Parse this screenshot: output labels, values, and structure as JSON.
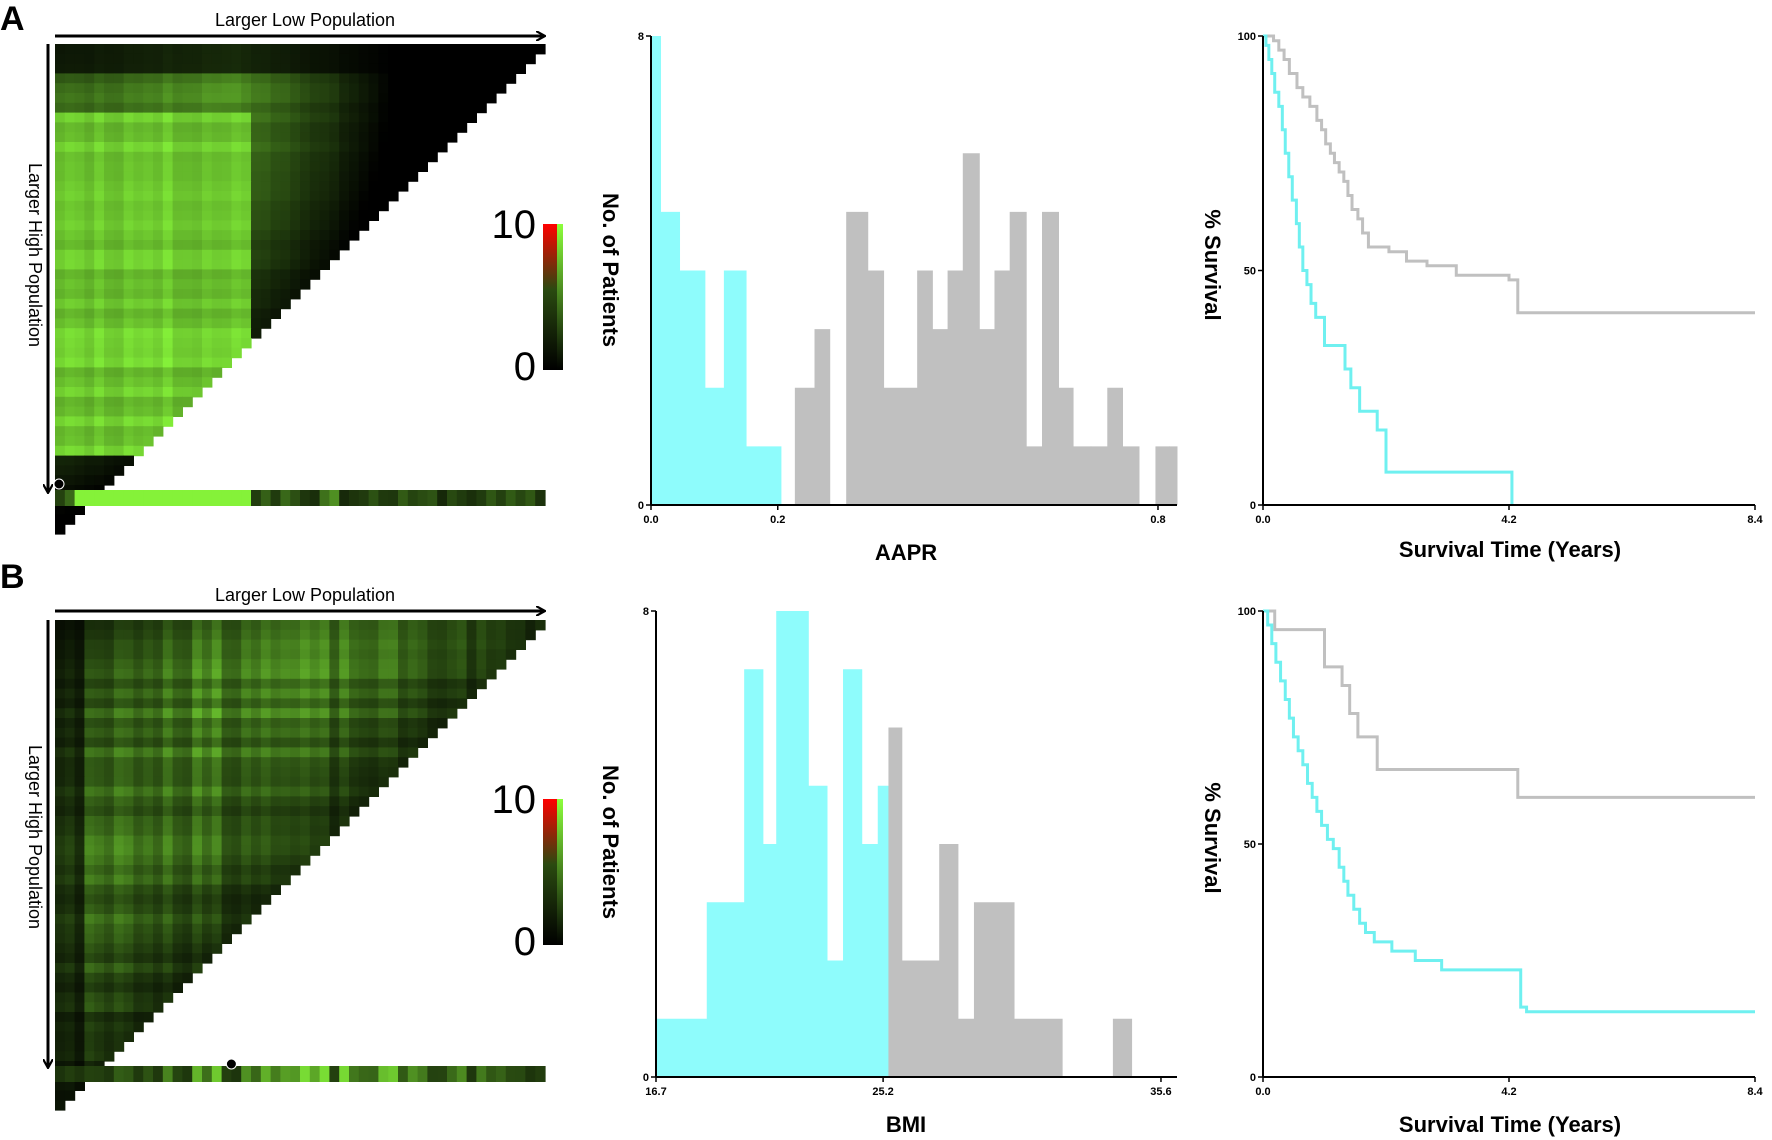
{
  "panels": [
    {
      "letter": "A",
      "heatmap": {
        "top_label": "Larger Low Population",
        "side_label": "Larger High Population",
        "colorbar": {
          "max_label": "10",
          "min_label": "0",
          "colors": [
            "#000000",
            "#8cff3c",
            "#ff0000"
          ]
        },
        "seed": 11,
        "marker_fraction": 0.0
      },
      "histogram": {
        "type": "bar",
        "ylabel": "No. of Patients",
        "xlabel": "AAPR",
        "y_ticks": [
          "8",
          "0"
        ],
        "x_ticks": [
          {
            "value": 0.0,
            "label": "0.0"
          },
          {
            "value": 0.2,
            "label": "0.2"
          },
          {
            "value": 0.8,
            "label": "0.8"
          }
        ],
        "xlim": [
          0.0,
          0.83
        ],
        "ylim": [
          0,
          8
        ],
        "low_color": "#8efcfc",
        "high_color": "#c0c0c0",
        "bins": [
          {
            "x0": 0.0,
            "x1": 0.015,
            "count": 8,
            "group": "low"
          },
          {
            "x0": 0.015,
            "x1": 0.045,
            "count": 5,
            "group": "low"
          },
          {
            "x0": 0.045,
            "x1": 0.085,
            "count": 4,
            "group": "low"
          },
          {
            "x0": 0.085,
            "x1": 0.115,
            "count": 2,
            "group": "low"
          },
          {
            "x0": 0.115,
            "x1": 0.15,
            "count": 4,
            "group": "low"
          },
          {
            "x0": 0.15,
            "x1": 0.17,
            "count": 1,
            "group": "low"
          },
          {
            "x0": 0.17,
            "x1": 0.205,
            "count": 1,
            "group": "low"
          },
          {
            "x0": 0.205,
            "x1": 0.227,
            "count": 0,
            "group": "high"
          },
          {
            "x0": 0.227,
            "x1": 0.258,
            "count": 2,
            "group": "high"
          },
          {
            "x0": 0.258,
            "x1": 0.282,
            "count": 3,
            "group": "high"
          },
          {
            "x0": 0.282,
            "x1": 0.308,
            "count": 0,
            "group": "high"
          },
          {
            "x0": 0.308,
            "x1": 0.342,
            "count": 5,
            "group": "high"
          },
          {
            "x0": 0.342,
            "x1": 0.367,
            "count": 4,
            "group": "high"
          },
          {
            "x0": 0.367,
            "x1": 0.42,
            "count": 2,
            "group": "high"
          },
          {
            "x0": 0.42,
            "x1": 0.444,
            "count": 4,
            "group": "high"
          },
          {
            "x0": 0.444,
            "x1": 0.468,
            "count": 3,
            "group": "high"
          },
          {
            "x0": 0.468,
            "x1": 0.492,
            "count": 4,
            "group": "high"
          },
          {
            "x0": 0.492,
            "x1": 0.518,
            "count": 6,
            "group": "high"
          },
          {
            "x0": 0.518,
            "x1": 0.542,
            "count": 3,
            "group": "high"
          },
          {
            "x0": 0.542,
            "x1": 0.566,
            "count": 4,
            "group": "high"
          },
          {
            "x0": 0.566,
            "x1": 0.592,
            "count": 5,
            "group": "high"
          },
          {
            "x0": 0.592,
            "x1": 0.617,
            "count": 1,
            "group": "high"
          },
          {
            "x0": 0.617,
            "x1": 0.643,
            "count": 5,
            "group": "high"
          },
          {
            "x0": 0.643,
            "x1": 0.666,
            "count": 2,
            "group": "high"
          },
          {
            "x0": 0.666,
            "x1": 0.694,
            "count": 1,
            "group": "high"
          },
          {
            "x0": 0.694,
            "x1": 0.72,
            "count": 1,
            "group": "high"
          },
          {
            "x0": 0.72,
            "x1": 0.744,
            "count": 2,
            "group": "high"
          },
          {
            "x0": 0.744,
            "x1": 0.77,
            "count": 1,
            "group": "high"
          },
          {
            "x0": 0.77,
            "x1": 0.796,
            "count": 0,
            "group": "high"
          },
          {
            "x0": 0.796,
            "x1": 0.818,
            "count": 1,
            "group": "high"
          },
          {
            "x0": 0.818,
            "x1": 0.83,
            "count": 1,
            "group": "high"
          }
        ]
      },
      "survival": {
        "type": "line",
        "ylabel": "% Survival",
        "xlabel": "Survival Time (Years)",
        "y_ticks": [
          "100",
          "50",
          "0"
        ],
        "x_ticks": [
          {
            "value": 0.0,
            "label": "0.0"
          },
          {
            "value": 4.2,
            "label": "4.2"
          },
          {
            "value": 8.4,
            "label": "8.4"
          }
        ],
        "xlim": [
          0,
          8.4
        ],
        "ylim": [
          0,
          100
        ],
        "series": [
          {
            "color": "#c0c0c0",
            "x": [
              0,
              0.18,
              0.27,
              0.36,
              0.45,
              0.58,
              0.68,
              0.8,
              0.92,
              1.0,
              1.07,
              1.15,
              1.22,
              1.3,
              1.38,
              1.45,
              1.52,
              1.62,
              1.7,
              1.8,
              2.15,
              2.45,
              2.8,
              3.3,
              4.2,
              4.35,
              8.4
            ],
            "y": [
              100,
              99,
              97,
              95,
              92,
              89,
              87,
              85,
              82,
              80,
              77,
              75,
              73,
              71,
              69,
              66,
              63,
              61,
              58,
              55,
              54,
              52,
              51,
              49,
              48,
              41,
              41
            ]
          },
          {
            "color": "#6ff0f0",
            "x": [
              0,
              0.05,
              0.1,
              0.15,
              0.2,
              0.27,
              0.33,
              0.38,
              0.44,
              0.5,
              0.57,
              0.62,
              0.68,
              0.75,
              0.82,
              0.9,
              1.05,
              1.4,
              1.5,
              1.65,
              1.95,
              2.1,
              4.25
            ],
            "y": [
              100,
              98,
              95,
              92,
              88,
              85,
              80,
              75,
              70,
              65,
              60,
              55,
              50,
              47,
              43,
              40,
              34,
              29,
              25,
              20,
              16,
              7,
              0
            ]
          }
        ]
      }
    },
    {
      "letter": "B",
      "heatmap": {
        "top_label": "Larger Low Population",
        "side_label": "Larger High Population",
        "colorbar": {
          "max_label": "10",
          "min_label": "0",
          "colors": [
            "#000000",
            "#8cff3c",
            "#ff0000"
          ]
        },
        "seed": 23,
        "marker_fraction": 0.36
      },
      "histogram": {
        "type": "bar",
        "ylabel": "No. of Patients",
        "xlabel": "BMI",
        "y_ticks": [
          "8",
          "0"
        ],
        "x_ticks": [
          {
            "value": 16.7,
            "label": "16.7"
          },
          {
            "value": 25.2,
            "label": "25.2"
          },
          {
            "value": 35.6,
            "label": "35.6"
          }
        ],
        "xlim": [
          16.7,
          36.2
        ],
        "ylim": [
          0,
          8
        ],
        "low_color": "#8efcfc",
        "high_color": "#c0c0c0",
        "bins": [
          {
            "x0": 16.7,
            "x1": 18.6,
            "count": 1,
            "group": "low"
          },
          {
            "x0": 18.6,
            "x1": 20.0,
            "count": 3,
            "group": "low"
          },
          {
            "x0": 20.0,
            "x1": 20.7,
            "count": 7,
            "group": "low"
          },
          {
            "x0": 20.7,
            "x1": 21.2,
            "count": 4,
            "group": "low"
          },
          {
            "x0": 21.2,
            "x1": 22.4,
            "count": 8,
            "group": "low"
          },
          {
            "x0": 22.4,
            "x1": 23.1,
            "count": 5,
            "group": "low"
          },
          {
            "x0": 23.1,
            "x1": 23.7,
            "count": 2,
            "group": "low"
          },
          {
            "x0": 23.7,
            "x1": 24.4,
            "count": 7,
            "group": "low"
          },
          {
            "x0": 24.4,
            "x1": 25.0,
            "count": 4,
            "group": "low"
          },
          {
            "x0": 25.0,
            "x1": 25.4,
            "count": 5,
            "group": "low"
          },
          {
            "x0": 25.4,
            "x1": 25.9,
            "count": 6,
            "group": "high"
          },
          {
            "x0": 25.9,
            "x1": 27.3,
            "count": 2,
            "group": "high"
          },
          {
            "x0": 27.3,
            "x1": 28.0,
            "count": 4,
            "group": "high"
          },
          {
            "x0": 28.0,
            "x1": 28.6,
            "count": 1,
            "group": "high"
          },
          {
            "x0": 28.6,
            "x1": 30.1,
            "count": 3,
            "group": "high"
          },
          {
            "x0": 30.1,
            "x1": 31.9,
            "count": 1,
            "group": "high"
          },
          {
            "x0": 31.9,
            "x1": 33.8,
            "count": 0,
            "group": "high"
          },
          {
            "x0": 33.8,
            "x1": 34.5,
            "count": 1,
            "group": "high"
          },
          {
            "x0": 34.5,
            "x1": 36.2,
            "count": 0,
            "group": "high"
          }
        ]
      },
      "survival": {
        "type": "line",
        "ylabel": "% Survival",
        "xlabel": "Survival Time (Years)",
        "y_ticks": [
          "100",
          "50",
          "0"
        ],
        "x_ticks": [
          {
            "value": 0.0,
            "label": "0.0"
          },
          {
            "value": 4.2,
            "label": "4.2"
          },
          {
            "value": 8.4,
            "label": "8.4"
          }
        ],
        "xlim": [
          0,
          8.4
        ],
        "ylim": [
          0,
          100
        ],
        "series": [
          {
            "color": "#c0c0c0",
            "x": [
              0,
              0.2,
              0.9,
              1.05,
              1.35,
              1.48,
              1.62,
              1.95,
              4.35,
              8.4
            ],
            "y": [
              100,
              96,
              96,
              88,
              84,
              78,
              73,
              66,
              60,
              60
            ]
          },
          {
            "color": "#6ff0f0",
            "x": [
              0,
              0.08,
              0.15,
              0.22,
              0.3,
              0.38,
              0.45,
              0.52,
              0.6,
              0.68,
              0.76,
              0.84,
              0.92,
              1.0,
              1.1,
              1.2,
              1.3,
              1.38,
              1.45,
              1.55,
              1.65,
              1.75,
              1.9,
              2.2,
              2.6,
              3.05,
              4.4,
              4.5,
              8.4
            ],
            "y": [
              100,
              97,
              93,
              89,
              85,
              81,
              77,
              73,
              70,
              67,
              63,
              60,
              57,
              54,
              51,
              49,
              45,
              42,
              39,
              36,
              33,
              31,
              29,
              27,
              25,
              23,
              15,
              14,
              14
            ]
          }
        ]
      }
    }
  ]
}
